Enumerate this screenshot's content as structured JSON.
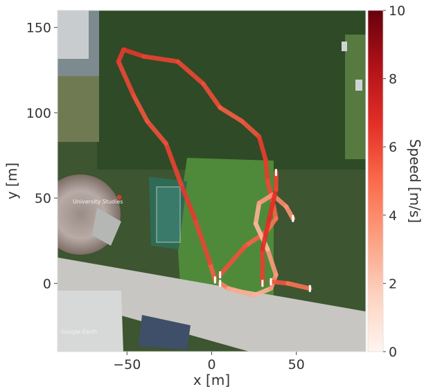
{
  "chart_data": {
    "type": "line",
    "xlabel": "x [m]",
    "ylabel": "y [m]",
    "xlim": [
      -91,
      91
    ],
    "ylim": [
      -40,
      160
    ],
    "x_ticks": [
      -50,
      0,
      50
    ],
    "y_ticks": [
      0,
      50,
      100,
      150
    ],
    "colorbar": {
      "label": "Speed [m/s]",
      "range": [
        0,
        10
      ],
      "ticks": [
        0,
        2,
        4,
        6,
        8,
        10
      ],
      "colormap": [
        "#fff5f0",
        "#fdd2bf",
        "#fc9f81",
        "#fb6b4b",
        "#e32f27",
        "#b11218",
        "#67000d"
      ]
    },
    "background": "satellite map",
    "map_text": {
      "place_label": "University Studies",
      "attribution": "Google Earth"
    },
    "series": [
      {
        "points": [
          {
            "x": 2,
            "y": 2,
            "speed": 5.0
          },
          {
            "x": -1,
            "y": 12,
            "speed": 5.8
          },
          {
            "x": -10,
            "y": 38,
            "speed": 6.5
          },
          {
            "x": -18,
            "y": 58,
            "speed": 6.3
          },
          {
            "x": -27,
            "y": 82,
            "speed": 6.0
          },
          {
            "x": -38,
            "y": 95,
            "speed": 5.5
          },
          {
            "x": -46,
            "y": 110,
            "speed": 5.8
          },
          {
            "x": -55,
            "y": 130,
            "speed": 6.2
          },
          {
            "x": -52,
            "y": 137,
            "speed": 6.5
          },
          {
            "x": -40,
            "y": 133,
            "speed": 6.4
          },
          {
            "x": -20,
            "y": 130,
            "speed": 5.8
          },
          {
            "x": -5,
            "y": 117,
            "speed": 6.2
          },
          {
            "x": 5,
            "y": 103,
            "speed": 5.5
          },
          {
            "x": 18,
            "y": 95,
            "speed": 5.2
          },
          {
            "x": 28,
            "y": 86,
            "speed": 6.0
          },
          {
            "x": 32,
            "y": 72,
            "speed": 6.5
          },
          {
            "x": 33,
            "y": 60,
            "speed": 6.2
          },
          {
            "x": 36,
            "y": 48,
            "speed": 5.8
          },
          {
            "x": 38,
            "y": 38,
            "speed": 4.5
          },
          {
            "x": 32,
            "y": 30,
            "speed": 5.0
          },
          {
            "x": 20,
            "y": 22,
            "speed": 5.5
          },
          {
            "x": 5,
            "y": 5,
            "speed": 6.0
          }
        ]
      },
      {
        "points": [
          {
            "x": 5,
            "y": 0,
            "speed": 5.0
          },
          {
            "x": 10,
            "y": -3,
            "speed": 3.5
          },
          {
            "x": 25,
            "y": -7,
            "speed": 2.5
          },
          {
            "x": 35,
            "y": -3,
            "speed": 3.0
          },
          {
            "x": 38,
            "y": 5,
            "speed": 4.5
          },
          {
            "x": 33,
            "y": 20,
            "speed": 2.5
          },
          {
            "x": 26,
            "y": 35,
            "speed": 2.5
          },
          {
            "x": 28,
            "y": 47,
            "speed": 3.0
          },
          {
            "x": 36,
            "y": 52,
            "speed": 4.0
          },
          {
            "x": 44,
            "y": 45,
            "speed": 4.0
          },
          {
            "x": 48,
            "y": 38,
            "speed": 3.5
          }
        ]
      },
      {
        "points": [
          {
            "x": 30,
            "y": 0,
            "speed": 6.0
          },
          {
            "x": 30,
            "y": 20,
            "speed": 6.5
          },
          {
            "x": 34,
            "y": 38,
            "speed": 7.0
          },
          {
            "x": 38,
            "y": 55,
            "speed": 6.5
          },
          {
            "x": 38,
            "y": 65,
            "speed": 5.5
          }
        ]
      },
      {
        "points": [
          {
            "x": 35,
            "y": 1,
            "speed": 5.8
          },
          {
            "x": 45,
            "y": 0,
            "speed": 5.5
          },
          {
            "x": 58,
            "y": -3,
            "speed": 4.0
          }
        ]
      }
    ]
  }
}
